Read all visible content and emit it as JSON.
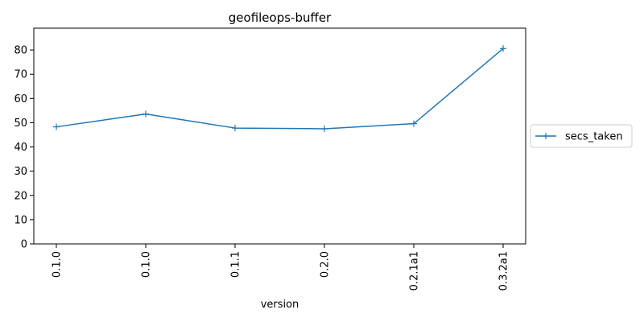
{
  "chart_data": {
    "type": "line",
    "title": "geofileops-buffer",
    "xlabel": "version",
    "ylabel": "",
    "categories": [
      "0.1.0",
      "0.1.0",
      "0.1.1",
      "0.2.0",
      "0.2.1a1",
      "0.3.2a1"
    ],
    "series": [
      {
        "name": "secs_taken",
        "values": [
          48.3,
          53.6,
          47.8,
          47.5,
          49.6,
          80.6
        ],
        "color": "#1f77b4",
        "marker": "+"
      }
    ],
    "ylim": [
      0,
      89
    ],
    "yticks": [
      0,
      10,
      20,
      30,
      40,
      50,
      60,
      70,
      80
    ],
    "grid": false,
    "legend_position": "outside-right"
  }
}
